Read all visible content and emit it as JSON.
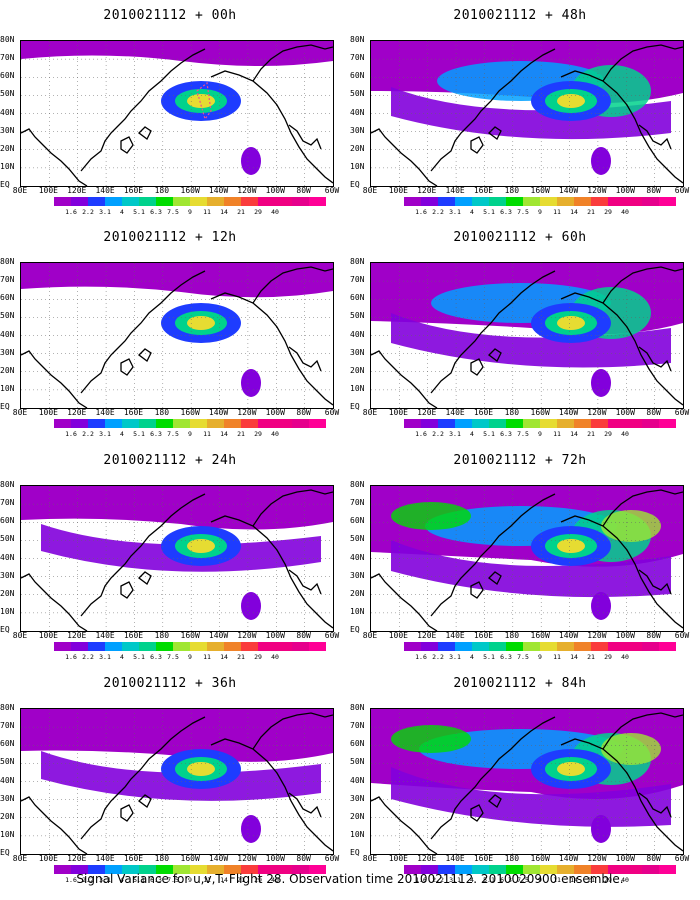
{
  "panels": [
    {
      "title": "2010021112 + 00h"
    },
    {
      "title": "2010021112 + 48h"
    },
    {
      "title": "2010021112 + 12h"
    },
    {
      "title": "2010021112 + 60h"
    },
    {
      "title": "2010021112 + 24h"
    },
    {
      "title": "2010021112 + 72h"
    },
    {
      "title": "2010021112 + 36h"
    },
    {
      "title": "2010021112 + 84h"
    }
  ],
  "lat_labels": [
    "80N",
    "70N",
    "60N",
    "50N",
    "40N",
    "30N",
    "20N",
    "10N",
    "EQ"
  ],
  "lon_labels": [
    "80E",
    "100E",
    "120E",
    "140E",
    "160E",
    "180",
    "160W",
    "140W",
    "120W",
    "100W",
    "80W",
    "60W"
  ],
  "colorbar": {
    "labels": [
      "1.6",
      "2.2",
      "3.1",
      "4",
      "5.1",
      "6.3",
      "7.5",
      "9",
      "11",
      "14",
      "21",
      "29",
      "40"
    ],
    "colors": [
      "#a000c8",
      "#8200dc",
      "#1e3cff",
      "#00a0ff",
      "#00c8c8",
      "#00d28c",
      "#00dc00",
      "#a0e632",
      "#e6dc32",
      "#e6af2d",
      "#f08228",
      "#fa3c3c",
      "#f00082"
    ]
  },
  "footer": "Signal Variance for u,v,T. Flight 28. Observation time 2010021112. 2010020900 ensemble."
}
